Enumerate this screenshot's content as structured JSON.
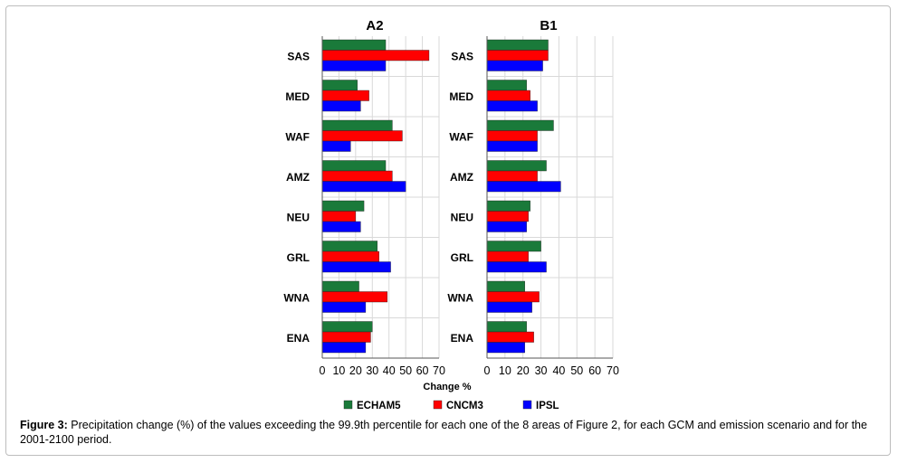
{
  "chart_data": [
    {
      "type": "bar",
      "orientation": "horizontal",
      "title": "A2",
      "categories": [
        "SAS",
        "MED",
        "WAF",
        "AMZ",
        "NEU",
        "GRL",
        "WNA",
        "ENA"
      ],
      "series": [
        {
          "name": "ECHAM5",
          "color": "#1a7a3a",
          "values": [
            38,
            21,
            42,
            38,
            25,
            33,
            22,
            30
          ]
        },
        {
          "name": "CNCM3",
          "color": "#ff0000",
          "values": [
            64,
            28,
            48,
            42,
            20,
            34,
            39,
            29
          ]
        },
        {
          "name": "IPSL",
          "color": "#0000ff",
          "values": [
            38,
            23,
            17,
            50,
            23,
            41,
            26,
            26
          ]
        }
      ],
      "xlabel": "Change %",
      "xlim": [
        0,
        70
      ],
      "xticks": [
        "0",
        "10",
        "20",
        "30",
        "40",
        "50",
        "60",
        "70"
      ],
      "grid": true
    },
    {
      "type": "bar",
      "orientation": "horizontal",
      "title": "B1",
      "categories": [
        "SAS",
        "MED",
        "WAF",
        "AMZ",
        "NEU",
        "GRL",
        "WNA",
        "ENA"
      ],
      "series": [
        {
          "name": "ECHAM5",
          "color": "#1a7a3a",
          "values": [
            34,
            22,
            37,
            33,
            24,
            30,
            21,
            22
          ]
        },
        {
          "name": "CNCM3",
          "color": "#ff0000",
          "values": [
            34,
            24,
            28,
            28,
            23,
            23,
            29,
            26
          ]
        },
        {
          "name": "IPSL",
          "color": "#0000ff",
          "values": [
            31,
            28,
            28,
            41,
            22,
            33,
            25,
            21
          ]
        }
      ],
      "xlim": [
        0,
        70
      ],
      "xticks": [
        "0",
        "10",
        "20",
        "30",
        "40",
        "50",
        "60",
        "70"
      ],
      "grid": true
    }
  ],
  "axis_label": "Change %",
  "legend": [
    {
      "name": "ECHAM5",
      "color": "#1a7a3a"
    },
    {
      "name": "CNCM3",
      "color": "#ff0000"
    },
    {
      "name": "IPSL",
      "color": "#0000ff"
    }
  ],
  "caption": {
    "label": "Figure 3:",
    "text": " Precipitation change (%) of the values exceeding the 99.9th percentile for each one of the 8 areas of Figure 2, for each GCM and emission scenario and for the 2001-2100 period."
  }
}
